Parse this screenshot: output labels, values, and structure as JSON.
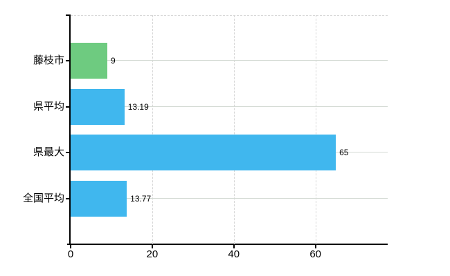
{
  "chart_data": {
    "type": "bar",
    "orientation": "horizontal",
    "title": "",
    "xlabel": "",
    "ylabel": "",
    "categories": [
      "藤枝市",
      "県平均",
      "県最大",
      "全国平均"
    ],
    "values": [
      9,
      13.19,
      65,
      13.77
    ],
    "value_labels": [
      "9",
      "13.19",
      "65",
      "13.77"
    ],
    "bar_colors": [
      "#6ecb80",
      "#40b7ee",
      "#40b7ee",
      "#40b7ee"
    ],
    "x_ticks": [
      0,
      20,
      40,
      60
    ],
    "xlim": [
      0,
      77.7
    ],
    "grid": true,
    "legend": false,
    "colors": {
      "bar_highlight": "#6ecb80",
      "bar_default": "#40b7ee",
      "gridline": "#d6d6d6",
      "axis": "#000000",
      "background": "#ffffff",
      "text": "#000000"
    }
  }
}
